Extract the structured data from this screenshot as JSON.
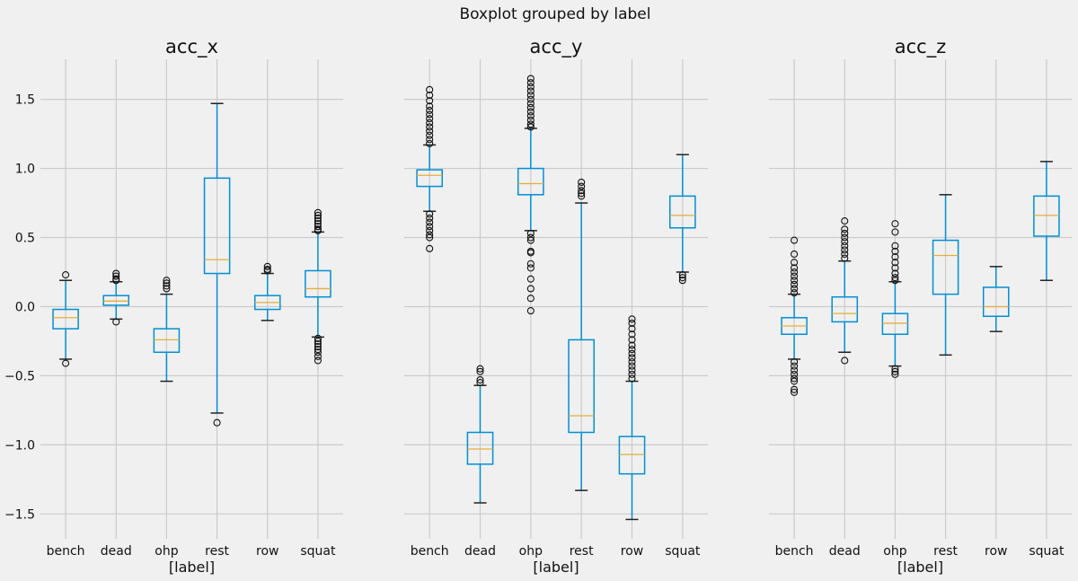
{
  "chart_data": {
    "type": "boxplot",
    "title": "Boxplot grouped by label",
    "categories": [
      "bench",
      "dead",
      "ohp",
      "rest",
      "row",
      "squat"
    ],
    "ylim": [
      -1.68,
      1.79
    ],
    "yticks": [
      1.5,
      1.0,
      0.5,
      0.0,
      -0.5,
      -1.0,
      -1.5
    ],
    "ytick_labels": [
      "1.5",
      "1.0",
      "0.5",
      "0.0",
      "−0.5",
      "−1.0",
      "−1.5"
    ],
    "grid": true,
    "sharey": true,
    "colors": {
      "background": "#f0f0f0",
      "grid": "#cbcbcb",
      "box": "#008fd5",
      "median": "#e5ae38",
      "whisker_cap": "#222222",
      "flier": "#111111"
    },
    "panels": [
      {
        "title": "acc_x",
        "xlabel": "[label]",
        "boxes": [
          {
            "label": "bench",
            "whislo": -0.38,
            "q1": -0.16,
            "med": -0.08,
            "q3": -0.02,
            "whishi": 0.19,
            "fliers": [
              0.23,
              -0.41
            ]
          },
          {
            "label": "dead",
            "whislo": -0.09,
            "q1": 0.01,
            "med": 0.04,
            "q3": 0.08,
            "whishi": 0.18,
            "fliers": [
              0.24,
              0.22,
              0.2,
              0.19,
              -0.11
            ]
          },
          {
            "label": "ohp",
            "whislo": -0.54,
            "q1": -0.33,
            "med": -0.24,
            "q3": -0.16,
            "whishi": 0.09,
            "fliers": [
              0.19,
              0.17,
              0.15,
              0.13
            ]
          },
          {
            "label": "rest",
            "whislo": -0.77,
            "q1": 0.24,
            "med": 0.34,
            "q3": 0.93,
            "whishi": 1.47,
            "fliers": [
              -0.84
            ]
          },
          {
            "label": "row",
            "whislo": -0.1,
            "q1": -0.02,
            "med": 0.03,
            "q3": 0.08,
            "whishi": 0.24,
            "fliers": [
              0.29,
              0.27,
              0.26
            ]
          },
          {
            "label": "squat",
            "whislo": -0.22,
            "q1": 0.07,
            "med": 0.13,
            "q3": 0.26,
            "whishi": 0.54,
            "fliers": [
              0.68,
              0.66,
              0.64,
              0.62,
              0.6,
              0.58,
              0.56,
              0.55,
              -0.23,
              -0.25,
              -0.27,
              -0.29,
              -0.31,
              -0.33,
              -0.36,
              -0.39
            ]
          }
        ]
      },
      {
        "title": "acc_y",
        "xlabel": "[label]",
        "boxes": [
          {
            "label": "bench",
            "whislo": 0.69,
            "q1": 0.87,
            "med": 0.95,
            "q3": 0.99,
            "whishi": 1.17,
            "fliers": [
              1.57,
              1.53,
              1.49,
              1.45,
              1.42,
              1.39,
              1.36,
              1.33,
              1.3,
              1.27,
              1.24,
              1.21,
              1.18,
              0.67,
              0.64,
              0.61,
              0.58,
              0.55,
              0.52,
              0.5,
              0.42
            ]
          },
          {
            "label": "dead",
            "whislo": -1.42,
            "q1": -1.14,
            "med": -1.03,
            "q3": -0.91,
            "whishi": -0.57,
            "fliers": [
              -0.45,
              -0.47,
              -0.53,
              -0.55
            ]
          },
          {
            "label": "ohp",
            "whislo": 0.55,
            "q1": 0.81,
            "med": 0.89,
            "q3": 1.0,
            "whishi": 1.29,
            "fliers": [
              1.65,
              1.62,
              1.59,
              1.56,
              1.53,
              1.5,
              1.47,
              1.44,
              1.41,
              1.38,
              1.35,
              1.32,
              1.3,
              0.53,
              0.5,
              0.48,
              0.4,
              0.39,
              0.31,
              0.28,
              0.2,
              0.13,
              0.06,
              -0.03
            ]
          },
          {
            "label": "rest",
            "whislo": -1.33,
            "q1": -0.91,
            "med": -0.79,
            "q3": -0.24,
            "whishi": 0.75,
            "fliers": [
              0.9,
              0.87,
              0.84,
              0.82,
              0.8
            ]
          },
          {
            "label": "row",
            "whislo": -1.54,
            "q1": -1.21,
            "med": -1.07,
            "q3": -0.94,
            "whishi": -0.54,
            "fliers": [
              -0.09,
              -0.12,
              -0.16,
              -0.2,
              -0.24,
              -0.28,
              -0.31,
              -0.34,
              -0.37,
              -0.4,
              -0.43,
              -0.46,
              -0.49,
              -0.52
            ]
          },
          {
            "label": "squat",
            "whislo": 0.25,
            "q1": 0.57,
            "med": 0.66,
            "q3": 0.8,
            "whishi": 1.1,
            "fliers": [
              0.23,
              0.21,
              0.19
            ]
          }
        ]
      },
      {
        "title": "acc_z",
        "xlabel": "[label]",
        "boxes": [
          {
            "label": "bench",
            "whislo": -0.38,
            "q1": -0.2,
            "med": -0.14,
            "q3": -0.08,
            "whishi": 0.09,
            "fliers": [
              0.48,
              0.38,
              0.32,
              0.28,
              0.25,
              0.22,
              0.19,
              0.16,
              0.13,
              0.1,
              -0.4,
              -0.43,
              -0.46,
              -0.49,
              -0.52,
              -0.54,
              -0.6,
              -0.62
            ]
          },
          {
            "label": "dead",
            "whislo": -0.33,
            "q1": -0.11,
            "med": -0.05,
            "q3": 0.07,
            "whishi": 0.33,
            "fliers": [
              0.62,
              0.56,
              0.53,
              0.5,
              0.47,
              0.44,
              0.41,
              0.38,
              0.35,
              -0.39
            ]
          },
          {
            "label": "ohp",
            "whislo": -0.43,
            "q1": -0.2,
            "med": -0.12,
            "q3": -0.05,
            "whishi": 0.18,
            "fliers": [
              0.6,
              0.54,
              0.44,
              0.4,
              0.36,
              0.32,
              0.28,
              0.24,
              0.21,
              0.19,
              -0.45,
              -0.47,
              -0.49
            ]
          },
          {
            "label": "rest",
            "whislo": -0.35,
            "q1": 0.09,
            "med": 0.37,
            "q3": 0.48,
            "whishi": 0.81,
            "fliers": []
          },
          {
            "label": "row",
            "whislo": -0.18,
            "q1": -0.07,
            "med": 0.0,
            "q3": 0.14,
            "whishi": 0.29,
            "fliers": []
          },
          {
            "label": "squat",
            "whislo": 0.19,
            "q1": 0.51,
            "med": 0.66,
            "q3": 0.8,
            "whishi": 1.05,
            "fliers": []
          }
        ]
      }
    ]
  }
}
